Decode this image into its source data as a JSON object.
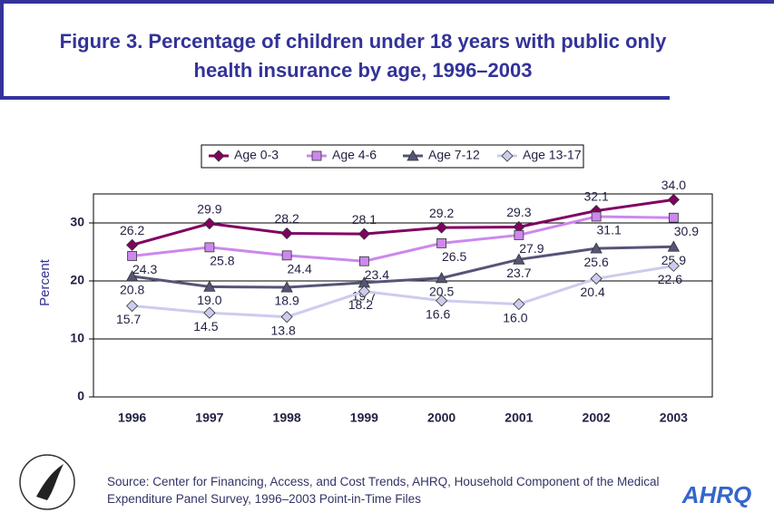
{
  "chart_data": {
    "type": "line",
    "title": "Figure 3. Percentage of children under 18 years with public only health insurance by age, 1996–2003",
    "y_label": "Percent",
    "categories": [
      "1996",
      "1997",
      "1998",
      "1999",
      "2000",
      "2001",
      "2002",
      "2003"
    ],
    "series": [
      {
        "name": "Age 0-3",
        "color": "#800060",
        "marker": "diamond",
        "values": [
          26.2,
          29.9,
          28.2,
          28.1,
          29.2,
          29.3,
          32.1,
          34.0
        ],
        "value_labels": [
          "26.2",
          "29.9",
          "28.2",
          "28.1",
          "29.2",
          "29.3",
          "32.1",
          "34.0"
        ]
      },
      {
        "name": "Age 4-6",
        "color": "#cc88ee",
        "marker": "square",
        "values": [
          24.3,
          25.8,
          24.4,
          23.4,
          26.5,
          27.9,
          31.1,
          30.9
        ],
        "value_labels": [
          "24.3",
          "25.8",
          "24.4",
          "23.4",
          "26.5",
          "27.9",
          "31.1",
          "30.9"
        ]
      },
      {
        "name": "Age 7-12",
        "color": "#555577",
        "marker": "triangle",
        "values": [
          20.8,
          19.0,
          18.9,
          19.7,
          20.5,
          23.7,
          25.6,
          25.9
        ],
        "value_labels": [
          "20.8",
          "19.0",
          "18.9",
          "19.7",
          "20.5",
          "23.7",
          "25.6",
          "25.9"
        ]
      },
      {
        "name": "Age 13-17",
        "color": "#ccccee",
        "marker": "diamond",
        "values": [
          15.7,
          14.5,
          13.8,
          18.2,
          16.6,
          16.0,
          20.4,
          22.6
        ],
        "value_labels": [
          "15.7",
          "14.5",
          "13.8",
          "18.2",
          "16.6",
          "16.0",
          "20.4",
          "22.6"
        ]
      }
    ],
    "ylim": [
      0,
      35
    ],
    "yticks": [
      0,
      10,
      20,
      30
    ],
    "grid": true,
    "legend": "top",
    "source": "Source: Center for Financing, Access, and Cost Trends, AHRQ, Household Component of the Medical Expenditure Panel Survey, 1996–2003 Point-in-Time Files",
    "logo": "AHRQ"
  }
}
